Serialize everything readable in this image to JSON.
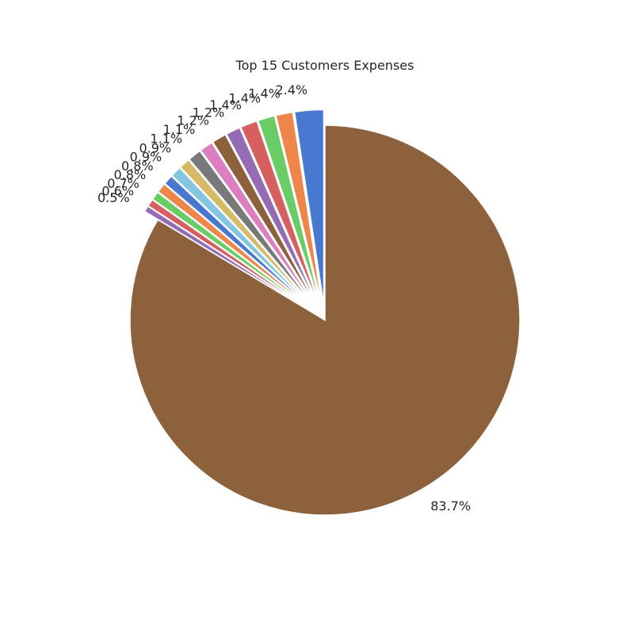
{
  "chart_data": {
    "type": "pie",
    "title": "Top 15 Customers Expenses",
    "start_angle_deg": 90,
    "direction": "counterclockwise",
    "exploded": "all slices except the largest",
    "colors": [
      "#4878d0",
      "#ee854a",
      "#6acc64",
      "#d65f5f",
      "#956cb4",
      "#8c613c",
      "#dc7ec0",
      "#797979",
      "#d5bb67",
      "#82c6e2",
      "#4878d0",
      "#ee854a",
      "#6acc64",
      "#d65f5f",
      "#956cb4",
      "#8c613c"
    ],
    "values": [
      2.4,
      1.4,
      1.4,
      1.4,
      1.2,
      1.2,
      1.1,
      1.1,
      0.9,
      0.9,
      0.8,
      0.8,
      0.7,
      0.6,
      0.5,
      83.7
    ],
    "labels": [
      "2.4%",
      "1.4%",
      "1.4%",
      "1.4%",
      "1.2%",
      "1.2%",
      "1.1%",
      "1.1%",
      "0.9%",
      "0.9%",
      "0.8%",
      "0.8%",
      "0.7%",
      "0.6%",
      "0.5%",
      "83.7%"
    ]
  }
}
